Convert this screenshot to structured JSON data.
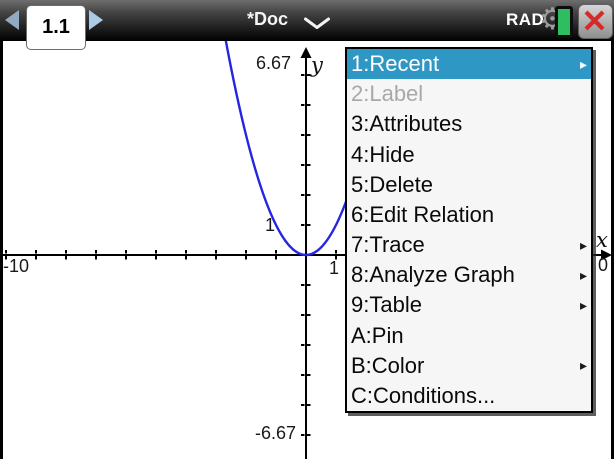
{
  "titlebar": {
    "page_tab": "1.1",
    "doc_title": "*Doc",
    "angle_mode": "RAD"
  },
  "context_menu": {
    "highlight_color": "#2f97c4",
    "items": [
      {
        "label": "1:Recent",
        "selected": true,
        "has_submenu": true
      },
      {
        "label": "2:Label",
        "disabled": true
      },
      {
        "label": "3:Attributes"
      },
      {
        "label": "4:Hide"
      },
      {
        "label": "5:Delete"
      },
      {
        "label": "6:Edit Relation"
      },
      {
        "label": "7:Trace",
        "has_submenu": true
      },
      {
        "label": "8:Analyze Graph",
        "has_submenu": true
      },
      {
        "label": "9:Table",
        "has_submenu": true
      },
      {
        "label": "A:Pin"
      },
      {
        "label": "B:Color",
        "has_submenu": true
      },
      {
        "label": "C:Conditions..."
      }
    ]
  },
  "chart_data": {
    "type": "line",
    "function": "y = x^2",
    "curve": {
      "a": 1,
      "b": 0,
      "c": 0,
      "x_draw_range": [
        -2.78,
        1.42
      ]
    },
    "window": {
      "xmin": -10,
      "xmax": 10,
      "ymin": -6.67,
      "ymax": 6.67
    },
    "x_tick_step": 1,
    "y_tick_step": 1,
    "grid": false,
    "curve_color": "#2525e2",
    "axis_labels": {
      "x": "x",
      "y": "y"
    },
    "tick_labels": {
      "y_max": "6.67",
      "y_unit": "1",
      "y_min": "-6.67",
      "x_min": "-10",
      "x_unit": "1",
      "x_max_clipped": "0"
    }
  }
}
